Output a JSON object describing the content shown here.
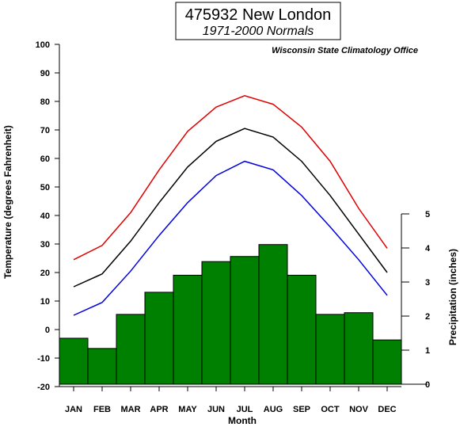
{
  "chart_data": {
    "type": "bar+line",
    "title": "475932 New London",
    "subtitle": "1971-2000 Normals",
    "source": "Wisconsin State Climatology Office",
    "xlabel": "Month",
    "ylabel_left": "Temperature (degrees Fahrenheit)",
    "ylabel_right": "Precipitation (inches)",
    "categories": [
      "JAN",
      "FEB",
      "MAR",
      "APR",
      "MAY",
      "JUN",
      "JUL",
      "AUG",
      "SEP",
      "OCT",
      "NOV",
      "DEC"
    ],
    "ylim_left": [
      -20,
      100
    ],
    "yticks_left": [
      "-20",
      "-10",
      "0",
      "10",
      "20",
      "30",
      "40",
      "50",
      "60",
      "70",
      "80",
      "90",
      "100"
    ],
    "ylim_right": [
      0,
      5
    ],
    "yticks_right": [
      "0",
      "1",
      "2",
      "3",
      "4",
      "5"
    ],
    "precipitation": [
      1.35,
      1.05,
      2.05,
      2.7,
      3.2,
      3.6,
      3.75,
      4.1,
      3.2,
      2.05,
      2.1,
      1.3
    ],
    "series": [
      {
        "values": [
          24.5,
          29.5,
          41,
          56,
          69.5,
          78,
          82,
          79,
          71,
          59,
          42.5,
          28.5
        ],
        "color": "#e00000"
      },
      {
        "values": [
          15,
          19.5,
          31,
          44.5,
          57,
          66,
          70.5,
          67.5,
          59,
          47,
          33.5,
          20
        ],
        "color": "#000000"
      },
      {
        "values": [
          5,
          9.5,
          20.5,
          33,
          44.5,
          54,
          59,
          56,
          47,
          36,
          24.5,
          12
        ],
        "color": "#0000e0"
      }
    ],
    "bar_color": "#008000",
    "grid": false
  }
}
